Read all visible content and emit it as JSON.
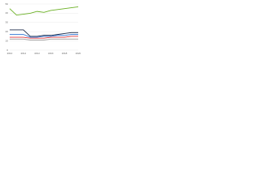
{
  "chart_data": {
    "type": "line",
    "x": [
      2010,
      2011,
      2012,
      2013,
      2014,
      2015,
      2016,
      2017,
      2018,
      2019,
      2020
    ],
    "ylim": [
      0,
      50
    ],
    "yticks": [
      0,
      10,
      20,
      30,
      40,
      50
    ],
    "grid": true,
    "series": [
      {
        "color": "#6ab023",
        "values": [
          45,
          38,
          39,
          40,
          42,
          41,
          43,
          44,
          45,
          46,
          47
        ]
      },
      {
        "color": "#1b2a4a",
        "values": [
          22,
          22,
          22,
          15,
          15,
          16,
          16,
          17,
          18,
          19,
          19
        ]
      },
      {
        "color": "#3a7bd5",
        "values": [
          17,
          17,
          17,
          14,
          14,
          15,
          15,
          16,
          16,
          17,
          17
        ]
      },
      {
        "color": "#e0383e",
        "values": [
          14,
          14,
          14,
          13,
          13,
          13,
          14,
          14,
          14,
          15,
          15
        ]
      },
      {
        "color": "#9a9a9a",
        "values": [
          12,
          12,
          12,
          11,
          11,
          11,
          12,
          12,
          12,
          12,
          12
        ]
      }
    ]
  }
}
